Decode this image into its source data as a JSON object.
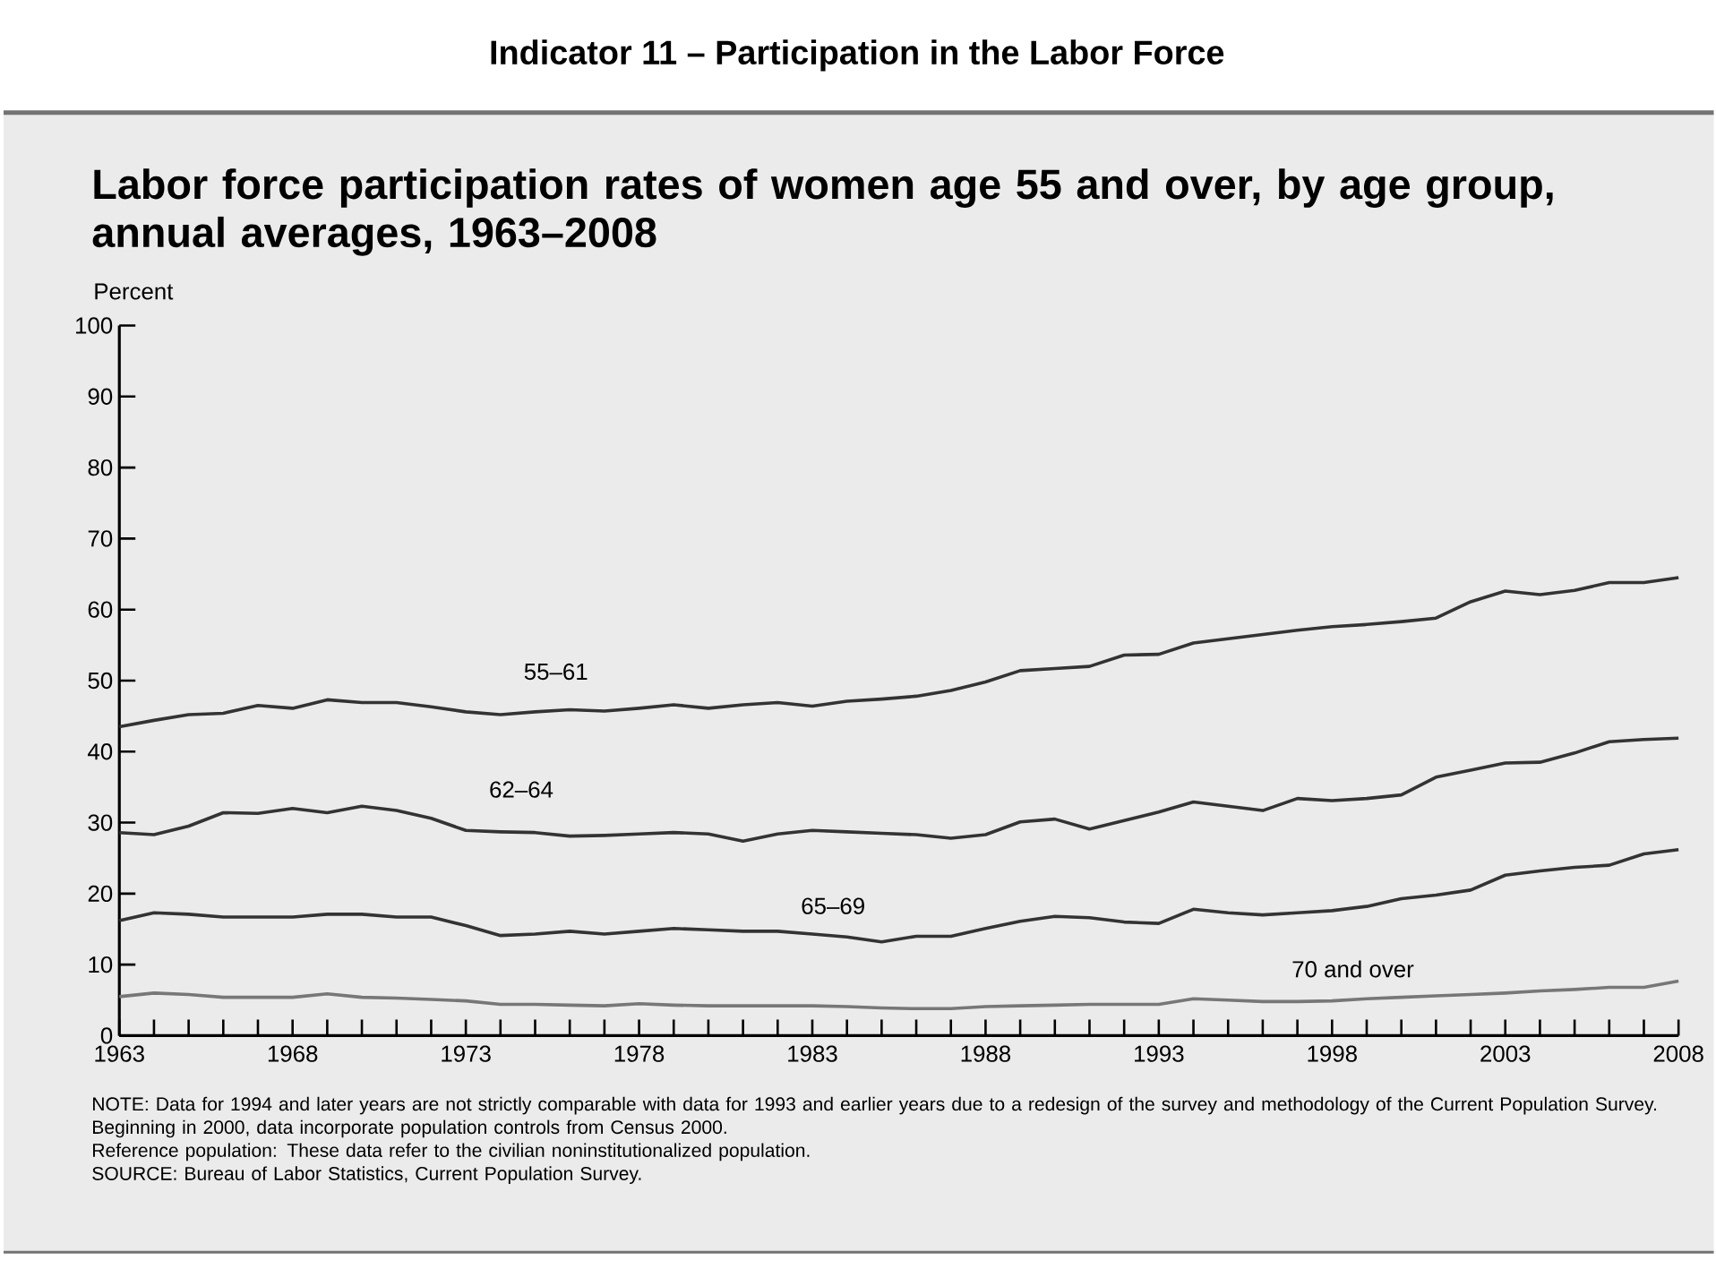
{
  "chart_data": {
    "type": "line",
    "title": "Indicator 11 – Participation in the Labor Force",
    "subtitle": "Labor force participation rates of women age 55 and over, by age group, annual averages, 1963–2008",
    "ylabel": "Percent",
    "x": [
      1963,
      1964,
      1965,
      1966,
      1967,
      1968,
      1969,
      1970,
      1971,
      1972,
      1973,
      1974,
      1975,
      1976,
      1977,
      1978,
      1979,
      1980,
      1981,
      1982,
      1983,
      1984,
      1985,
      1986,
      1987,
      1988,
      1989,
      1990,
      1991,
      1992,
      1993,
      1994,
      1995,
      1996,
      1997,
      1998,
      1999,
      2000,
      2001,
      2002,
      2003,
      2004,
      2005,
      2006,
      2007,
      2008
    ],
    "series": [
      {
        "name": "55–61",
        "color": "#333333",
        "values": [
          43.5,
          44.4,
          45.2,
          45.4,
          46.5,
          46.1,
          47.3,
          46.9,
          46.9,
          46.3,
          45.6,
          45.2,
          45.6,
          45.9,
          45.7,
          46.1,
          46.6,
          46.1,
          46.6,
          46.9,
          46.4,
          47.1,
          47.4,
          47.8,
          48.6,
          49.8,
          51.4,
          51.7,
          52.0,
          53.6,
          53.7,
          55.3,
          55.9,
          56.5,
          57.1,
          57.6,
          57.9,
          58.3,
          58.8,
          61.1,
          62.6,
          62.1,
          62.7,
          63.8,
          63.8,
          64.5
        ]
      },
      {
        "name": "62–64",
        "color": "#333333",
        "values": [
          28.6,
          28.3,
          29.5,
          31.4,
          31.3,
          32.0,
          31.4,
          32.3,
          31.7,
          30.6,
          28.9,
          28.7,
          28.6,
          28.1,
          28.2,
          28.4,
          28.6,
          28.4,
          27.4,
          28.4,
          28.9,
          28.7,
          28.5,
          28.3,
          27.8,
          28.3,
          30.1,
          30.5,
          29.1,
          30.3,
          31.5,
          32.9,
          32.3,
          31.7,
          33.4,
          33.1,
          33.4,
          33.9,
          36.4,
          37.4,
          38.4,
          38.5,
          39.8,
          41.4,
          41.7,
          41.9
        ]
      },
      {
        "name": "65–69",
        "color": "#333333",
        "values": [
          16.2,
          17.3,
          17.1,
          16.7,
          16.7,
          16.7,
          17.1,
          17.1,
          16.7,
          16.7,
          15.5,
          14.1,
          14.3,
          14.7,
          14.3,
          14.7,
          15.1,
          14.9,
          14.7,
          14.7,
          14.3,
          13.9,
          13.2,
          14.0,
          14.0,
          15.1,
          16.1,
          16.8,
          16.6,
          16.0,
          15.8,
          17.8,
          17.3,
          17.0,
          17.3,
          17.6,
          18.2,
          19.3,
          19.8,
          20.5,
          22.6,
          23.2,
          23.7,
          24.0,
          25.6,
          26.2
        ]
      },
      {
        "name": "70 and over",
        "color": "#777777",
        "values": [
          5.5,
          6.0,
          5.8,
          5.4,
          5.4,
          5.4,
          5.9,
          5.4,
          5.3,
          5.1,
          4.9,
          4.4,
          4.4,
          4.3,
          4.2,
          4.5,
          4.3,
          4.2,
          4.2,
          4.2,
          4.2,
          4.1,
          3.9,
          3.8,
          3.8,
          4.1,
          4.2,
          4.3,
          4.4,
          4.4,
          4.4,
          5.2,
          5.0,
          4.8,
          4.8,
          4.9,
          5.2,
          5.4,
          5.6,
          5.8,
          6.0,
          6.3,
          6.5,
          6.8,
          6.8,
          7.7
        ]
      }
    ],
    "xlim": [
      1963,
      2008
    ],
    "xticks": [
      1963,
      1968,
      1973,
      1978,
      1983,
      1988,
      1993,
      1998,
      2003,
      2008
    ],
    "ylim": [
      0,
      100
    ],
    "yticks": [
      0,
      10,
      20,
      30,
      40,
      50,
      60,
      70,
      80,
      90,
      100
    ],
    "line_style": "solid",
    "annotations": [
      "NOTE: Data for 1994 and later years are not strictly comparable with data for 1993 and earlier years due to a redesign of the survey and methodology of the Current Population Survey. Beginning in 2000, data incorporate population controls from Census 2000.",
      "Reference population: These data refer to the civilian noninstitutionalized population.",
      "SOURCE: Bureau of Labor Statistics, Current Population Survey."
    ]
  }
}
